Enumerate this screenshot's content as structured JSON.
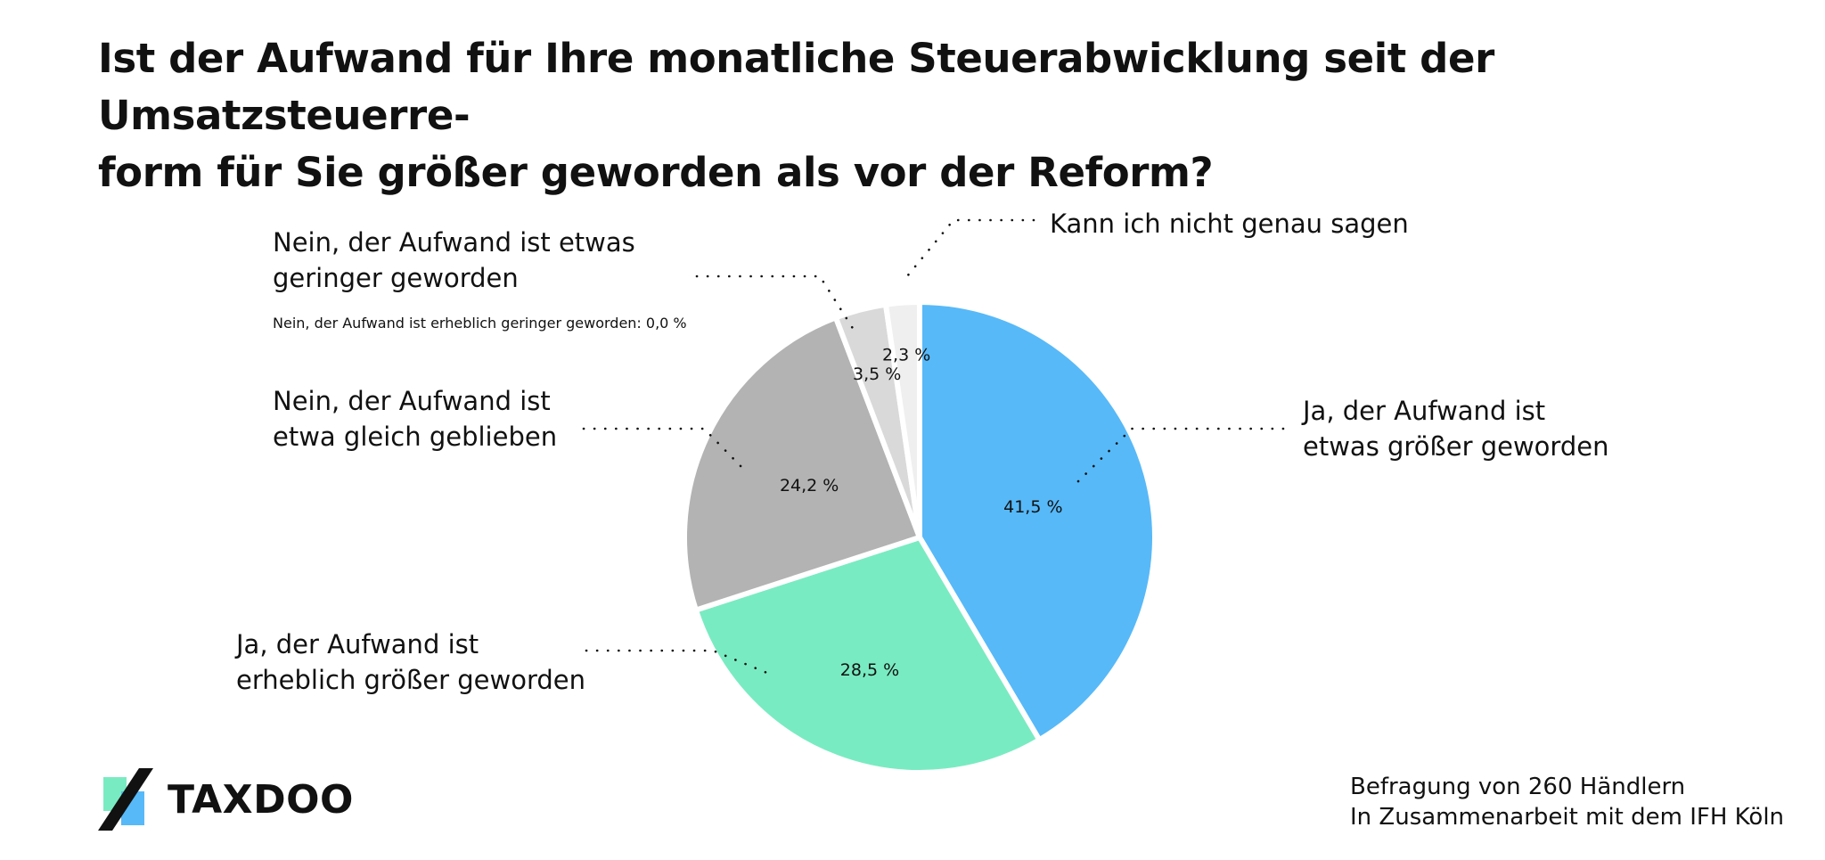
{
  "title": "Ist der Aufwand für Ihre monatliche Steuerabwicklung seit der Umsatzsteuerre-form für Sie größer geworden als vor der Reform?",
  "title_lines": [
    "Ist der Aufwand für Ihre monatliche Steuerabwicklung seit der Umsatzsteuerre-",
    "form für Sie größer geworden als vor der Reform?"
  ],
  "chart_data": {
    "type": "pie",
    "slices": [
      {
        "label": "Ja, der Aufwand ist etwas größer geworden",
        "value_label": "41,5 %",
        "value": 41.5,
        "color": "#57B9F8"
      },
      {
        "label": "Ja, der Aufwand ist erheblich größer geworden",
        "value_label": "28,5 %",
        "value": 28.5,
        "color": "#79EBC2"
      },
      {
        "label": "Nein, der Aufwand ist etwa gleich geblieben",
        "value_label": "24,2 %",
        "value": 24.2,
        "color": "#B3B3B3"
      },
      {
        "label": "Nein, der Aufwand ist etwas geringer geworden",
        "value_label": "3,5 %",
        "value": 3.5,
        "color": "#D9D9D9"
      },
      {
        "label": "Kann ich nicht genau sagen",
        "value_label": "2,3 %",
        "value": 2.3,
        "color": "#EFEFEF"
      }
    ],
    "label_lines": [
      [
        "Ja, der Aufwand ist",
        "etwas größer geworden"
      ],
      [
        "Ja, der Aufwand ist",
        "erheblich größer geworden"
      ],
      [
        "Nein, der Aufwand ist",
        "etwa gleich geblieben"
      ],
      [
        "Nein, der Aufwand ist etwas",
        "geringer geworden"
      ],
      [
        "Kann ich nicht genau sagen"
      ]
    ],
    "note": "Nein, der Aufwand ist erheblich geringer geworden: 0,0 %"
  },
  "brand": {
    "name": "TAXDOO",
    "mark_colors": [
      "#79EBC2",
      "#57B9F8"
    ]
  },
  "footer": {
    "line1": "Befragung von 260 Händlern",
    "line2": "In Zusammenarbeit mit dem IFH Köln"
  }
}
